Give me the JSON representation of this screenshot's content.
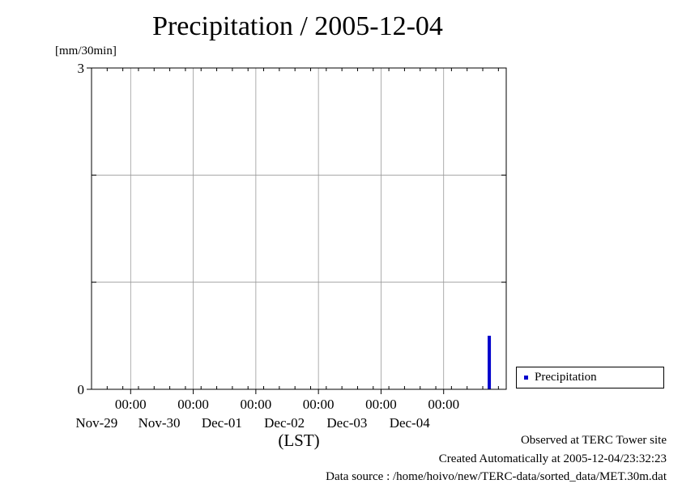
{
  "chart_data": {
    "type": "bar",
    "title": "Precipitation / 2005-12-04",
    "ylabel": "[mm/30min]",
    "xlabel": "(LST)",
    "ylim": [
      0,
      3
    ],
    "y_tick_labels": [
      "0",
      "3"
    ],
    "x_ticks": [
      {
        "time": "00:00",
        "date": "Nov-29"
      },
      {
        "time": "00:00",
        "date": "Nov-30"
      },
      {
        "time": "00:00",
        "date": "Dec-01"
      },
      {
        "time": "00:00",
        "date": "Dec-02"
      },
      {
        "time": "00:00",
        "date": "Dec-03"
      },
      {
        "time": "00:00",
        "date": "Dec-04"
      }
    ],
    "xlim": [
      "2005-11-28T09:00",
      "2005-12-05T00:00"
    ],
    "grid": true,
    "legend_position": "right",
    "series": [
      {
        "name": "Precipitation",
        "color": "#0000cc",
        "points": [
          {
            "x": "2005-12-04T17:30",
            "y": 0.5
          }
        ]
      }
    ]
  },
  "footer": {
    "observed": "Observed at TERC Tower site",
    "created": "Created Automatically at 2005-12-04/23:32:23",
    "source": "Data source : /home/hoivo/new/TERC-data/sorted_data/MET.30m.dat"
  }
}
